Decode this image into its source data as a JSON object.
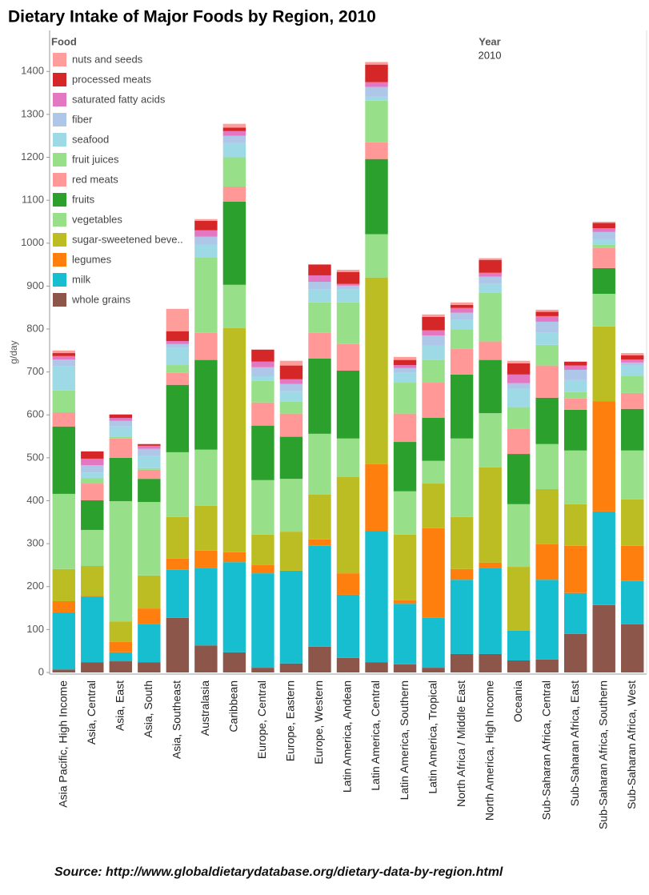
{
  "chart_data": {
    "type": "stacked_bar",
    "title": "Dietary Intake of Major Foods by Region, 2010",
    "y_label": "g/day",
    "legend_title": "Food",
    "year_header": "Year",
    "year_value": "2010",
    "source": "Source: http://www.globaldietarydatabase.org/dietary-data-by-region.html",
    "categories": [
      "Asia Pacific, High Income",
      "Asia, Central",
      "Asia, East",
      "Asia, South",
      "Asia, Southeast",
      "Australasia",
      "Caribbean",
      "Europe, Central",
      "Europe, Eastern",
      "Europe, Western",
      "Latin America, Andean",
      "Latin America, Central",
      "Latin America, Southern",
      "Latin America, Tropical",
      "North Africa / Middle East",
      "North America, High Income",
      "Oceania",
      "Sub-Saharan Africa, Central",
      "Sub-Saharan Africa, East",
      "Sub-Saharan Africa, Southern",
      "Sub-Saharan Africa, West"
    ],
    "ylim": [
      0,
      1490
    ],
    "yticks": [
      0,
      100,
      200,
      300,
      400,
      500,
      600,
      700,
      800,
      900,
      1000,
      1100,
      1200,
      1300,
      1400
    ],
    "grid": false,
    "legend_position": "top-left",
    "series": [
      {
        "name": "whole grains",
        "color": "#8c564b",
        "values": [
          7,
          24,
          26,
          24,
          127,
          63,
          47,
          11,
          21,
          60,
          34,
          24,
          19,
          11,
          43,
          43,
          28,
          30,
          90,
          157,
          112
        ]
      },
      {
        "name": "milk",
        "color": "#17becf",
        "values": [
          133,
          153,
          21,
          88,
          112,
          181,
          210,
          220,
          216,
          235,
          147,
          306,
          141,
          116,
          173,
          201,
          69,
          186,
          95,
          218,
          101
        ]
      },
      {
        "name": "legumes",
        "color": "#ff7f0e",
        "values": [
          26,
          1,
          24,
          37,
          26,
          40,
          23,
          19,
          0,
          15,
          50,
          155,
          8,
          209,
          25,
          12,
          0,
          83,
          110,
          257,
          82
        ]
      },
      {
        "name": "sugar-sweetened beve..",
        "color": "#bcbd22",
        "values": [
          75,
          70,
          48,
          77,
          97,
          104,
          522,
          71,
          91,
          104,
          224,
          435,
          153,
          104,
          121,
          222,
          149,
          128,
          97,
          174,
          108
        ]
      },
      {
        "name": "vegetables",
        "color": "#98df8a",
        "values": [
          175,
          84,
          280,
          171,
          151,
          131,
          101,
          127,
          123,
          142,
          90,
          101,
          101,
          53,
          183,
          126,
          146,
          105,
          125,
          76,
          114
        ]
      },
      {
        "name": "fruits",
        "color": "#2ca02c",
        "values": [
          157,
          69,
          101,
          54,
          157,
          209,
          194,
          127,
          98,
          175,
          158,
          175,
          115,
          100,
          149,
          124,
          117,
          108,
          95,
          60,
          97
        ]
      },
      {
        "name": "red meats",
        "color": "#ff9896",
        "values": [
          33,
          39,
          45,
          21,
          28,
          63,
          35,
          54,
          54,
          60,
          62,
          39,
          66,
          82,
          60,
          43,
          58,
          75,
          26,
          47,
          37
        ]
      },
      {
        "name": "fruit juices",
        "color": "#98df8a",
        "values": [
          51,
          13,
          4,
          4,
          18,
          175,
          68,
          50,
          28,
          71,
          97,
          97,
          72,
          53,
          45,
          113,
          51,
          48,
          15,
          7,
          39
        ]
      },
      {
        "name": "seafood",
        "color": "#9edae5",
        "values": [
          56,
          13,
          24,
          28,
          41,
          30,
          33,
          11,
          24,
          30,
          30,
          9,
          23,
          33,
          22,
          21,
          44,
          28,
          28,
          13,
          25
        ]
      },
      {
        "name": "fiber",
        "color": "#aec7e8",
        "values": [
          16,
          17,
          13,
          17,
          8,
          19,
          17,
          21,
          17,
          18,
          9,
          23,
          11,
          24,
          17,
          17,
          12,
          26,
          24,
          17,
          7
        ]
      },
      {
        "name": "saturated fatty acids",
        "color": "#e377c2",
        "values": [
          8,
          15,
          7,
          7,
          7,
          15,
          11,
          13,
          11,
          15,
          4,
          11,
          7,
          12,
          11,
          9,
          20,
          13,
          10,
          9,
          7
        ]
      },
      {
        "name": "processed meats",
        "color": "#d62728",
        "values": [
          7,
          17,
          8,
          4,
          23,
          22,
          8,
          28,
          32,
          25,
          28,
          41,
          12,
          31,
          7,
          30,
          26,
          10,
          9,
          12,
          10
        ]
      },
      {
        "name": "nuts and seeds",
        "color": "#ff9d9a",
        "values": [
          6,
          0,
          0,
          0,
          52,
          4,
          9,
          0,
          11,
          1,
          5,
          6,
          7,
          6,
          6,
          4,
          6,
          5,
          0,
          3,
          5
        ]
      }
    ]
  }
}
